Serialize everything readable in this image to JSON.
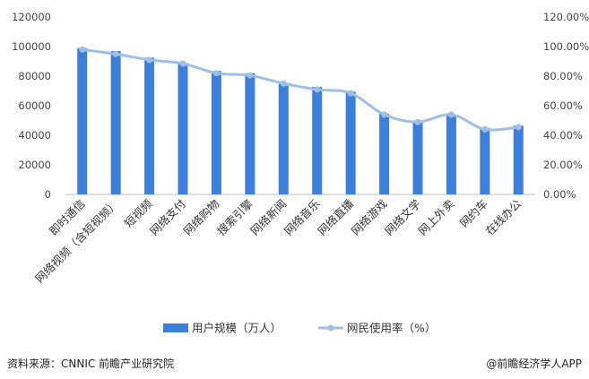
{
  "chart_data": {
    "type": "bar",
    "categories": [
      "即时通信",
      "网络视频（含短视频）",
      "短视频",
      "网络支付",
      "网络购物",
      "搜索引擎",
      "网络新闻",
      "网络音乐",
      "网络直播",
      "网络游戏",
      "网络文学",
      "网上外卖",
      "网约车",
      "在线办公"
    ],
    "series": [
      {
        "name": "用户规模（万人）",
        "type": "bar",
        "axis": "left",
        "values": [
          99000,
          97000,
          92500,
          89000,
          83500,
          82000,
          75500,
          72700,
          69500,
          54500,
          49500,
          54000,
          45000,
          46500
        ],
        "color": "#3d7fd9"
      },
      {
        "name": "网民使用率（%）",
        "type": "line",
        "axis": "right",
        "values": [
          98.0,
          95.0,
          91.0,
          88.5,
          82.0,
          80.5,
          75.0,
          71.0,
          68.5,
          54.0,
          49.0,
          54.0,
          44.0,
          45.5
        ],
        "color": "#9dbfea"
      }
    ],
    "ylim_left": [
      0,
      120000
    ],
    "yticks_left": [
      "0",
      "20000",
      "40000",
      "60000",
      "80000",
      "100000",
      "120000"
    ],
    "ylim_right": [
      0,
      120
    ],
    "yticks_right": [
      "0.00%",
      "20.00%",
      "40.00%",
      "60.00%",
      "80.00%",
      "100.00%",
      "120.00%"
    ],
    "legend_position": "bottom",
    "grid": false
  },
  "footer": {
    "source": "资料来源：CNNIC 前瞻产业研究院",
    "app": "@前瞻经济学人APP"
  }
}
